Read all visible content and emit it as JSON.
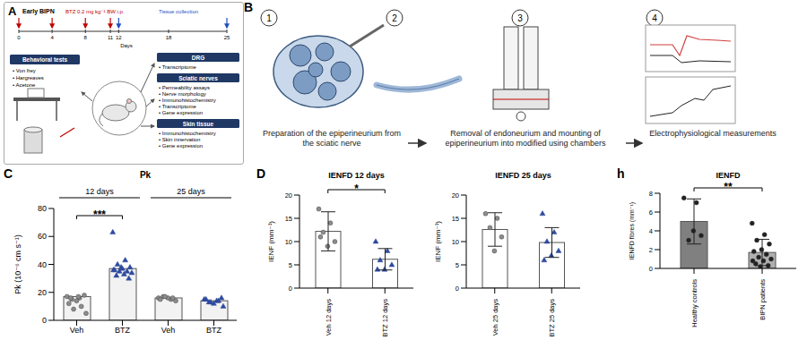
{
  "panel_A": {
    "letter": "A",
    "title": "Early BIPN",
    "injection_label": "BTZ 0.2 mg kg⁻¹ BW i.p.",
    "collection_label": "Tissue collection",
    "x_label": "Days",
    "days": [
      0,
      4,
      8,
      11,
      12,
      18,
      25
    ],
    "injection_days": [
      0,
      4,
      8,
      11
    ],
    "collection_days": [
      12,
      25
    ],
    "boxes": [
      {
        "title": "Behavioral tests",
        "items": [
          "• Von frey",
          "• Hargreaves",
          "• Acetone"
        ]
      },
      {
        "title": "DRG",
        "items": [
          "• Transcriptome"
        ]
      },
      {
        "title": "Sciatic nerves",
        "items": [
          "• Permeability assays",
          "• Nerve morphology",
          "• Immunohistochemistry",
          "• Transcriptome",
          "• Gene expression"
        ]
      },
      {
        "title": "Skin tissue",
        "items": [
          "• Immunohistochemistry",
          "• Skin innervation",
          "• Gene expression"
        ]
      }
    ]
  },
  "panel_B": {
    "letter": "B",
    "steps": [
      1,
      2,
      3,
      4
    ],
    "captions": [
      "Preparation of the epiperineurium from the sciatic nerve",
      "Removal of endoneurium and mounting of epiperineurium into modified using chambers",
      "Electrophysiological measurements"
    ]
  },
  "chart_data": [
    {
      "type": "bar",
      "panel": "C",
      "title": "Pk",
      "y_label": "Pk (10⁻⁶ cm s⁻¹)",
      "groups": [
        "12 days",
        "25 days"
      ],
      "categories": [
        "Veh",
        "BTZ",
        "Veh",
        "BTZ"
      ],
      "values": [
        17,
        37,
        16,
        14
      ],
      "colors": [
        "#f2f2f2",
        "#f2f2f2",
        "#f2f2f2",
        "#f2f2f2"
      ],
      "points": [
        [
          17,
          16,
          15,
          18,
          14,
          12,
          10,
          8,
          5,
          17,
          16
        ],
        [
          63,
          43,
          40,
          38,
          37,
          36,
          35,
          35,
          34,
          33,
          32,
          30,
          38,
          36
        ],
        [
          16,
          15,
          17,
          14,
          16,
          15,
          16,
          17
        ],
        [
          15,
          14,
          13,
          16,
          12,
          15,
          14,
          13,
          10
        ]
      ],
      "point_colors": [
        "#8c8c8c",
        "#2e4a9e",
        "#8c8c8c",
        "#2e4a9e"
      ],
      "point_markers": [
        "circle",
        "triangle",
        "circle",
        "triangle"
      ],
      "ylim": [
        0,
        80
      ],
      "yticks": [
        0,
        20,
        40,
        60,
        80
      ],
      "significance": [
        {
          "between": [
            0,
            1
          ],
          "label": "***"
        }
      ]
    },
    {
      "type": "bar",
      "panel": "D",
      "title": "IENFD 12 days",
      "y_label": "IENF (mm⁻¹)",
      "categories": [
        "Veh 12 days",
        "BTZ 12 days"
      ],
      "values": [
        12.2,
        6.2
      ],
      "errors": [
        4.2,
        2.3
      ],
      "colors": [
        "#ffffff",
        "#ffffff"
      ],
      "points": [
        [
          17,
          14,
          12,
          10,
          9,
          11
        ],
        [
          10,
          8,
          6,
          5,
          4,
          4
        ]
      ],
      "point_colors": [
        "#8c8c8c",
        "#2e4a9e"
      ],
      "point_markers": [
        "circle",
        "triangle"
      ],
      "ylim": [
        0,
        20
      ],
      "yticks": [
        0,
        5,
        10,
        15,
        20
      ],
      "significance": [
        {
          "between": [
            0,
            1
          ],
          "label": "*"
        }
      ]
    },
    {
      "type": "bar",
      "title": "IENFD 25 days",
      "y_label": "IENF (mm⁻¹)",
      "categories": [
        "Veh 25 days",
        "BTZ 25 days"
      ],
      "values": [
        12.6,
        9.8
      ],
      "errors": [
        3.6,
        3.2
      ],
      "colors": [
        "#ffffff",
        "#ffffff"
      ],
      "points": [
        [
          16,
          15,
          13,
          11,
          8
        ],
        [
          16,
          12,
          10,
          8,
          7,
          6
        ]
      ],
      "point_colors": [
        "#8c8c8c",
        "#2e4a9e"
      ],
      "point_markers": [
        "circle",
        "triangle"
      ],
      "ylim": [
        0,
        20
      ],
      "yticks": [
        0,
        5,
        10,
        15,
        20
      ]
    },
    {
      "type": "bar",
      "panel": "h",
      "title": "IENFD",
      "y_label": "IENFD fibres (mm⁻¹)",
      "categories": [
        "Healthy controls",
        "BIPN patients"
      ],
      "values": [
        5,
        1.7
      ],
      "errors": [
        2.4,
        1.4
      ],
      "colors": [
        "#808080",
        "#b0b0b0"
      ],
      "points": [
        [
          7.5,
          7,
          3,
          3.5,
          4
        ],
        [
          4.8,
          3.6,
          3,
          2.6,
          2,
          1.8,
          1.5,
          1.2,
          1,
          0.8,
          0.5,
          0.3,
          0.2,
          0.8
        ]
      ],
      "point_colors": [
        "#222222",
        "#222222"
      ],
      "point_markers": [
        "circle",
        "circle"
      ],
      "ylim": [
        0,
        8
      ],
      "yticks": [
        0,
        2,
        4,
        6,
        8
      ],
      "significance": [
        {
          "between": [
            0,
            1
          ],
          "label": "**"
        }
      ]
    }
  ]
}
